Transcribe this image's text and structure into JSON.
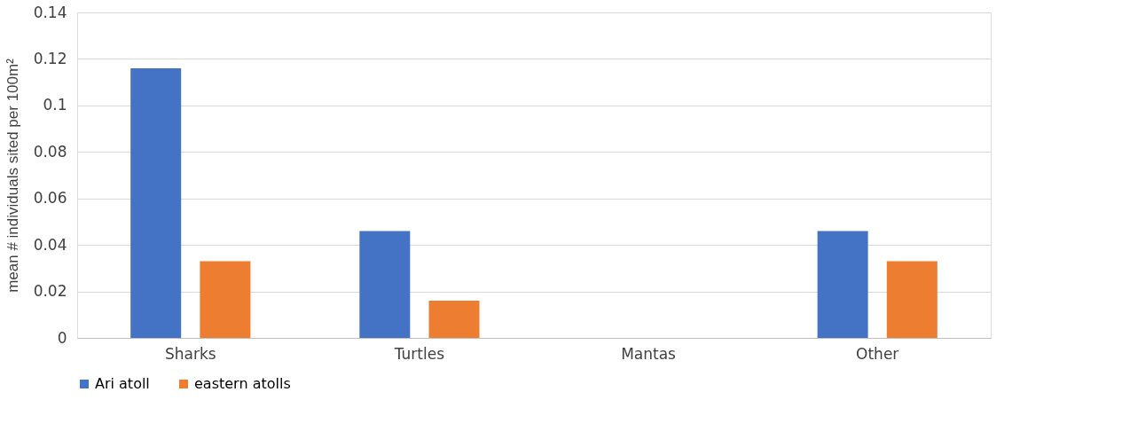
{
  "chart_data": {
    "type": "bar",
    "ylabel": "mean # individuals sited per 100m²",
    "categories": [
      "Sharks",
      "Turtles",
      "Mantas",
      "Other"
    ],
    "series": [
      {
        "name": "Ari atoll",
        "color": "#4472c4",
        "values": [
          0.116,
          0.046,
          0,
          0.046
        ]
      },
      {
        "name": "eastern atolls",
        "color": "#ed7d31",
        "values": [
          0.033,
          0.016,
          0,
          0.033
        ]
      }
    ],
    "ylim": [
      0,
      0.14
    ],
    "yticks": [
      0,
      0.02,
      0.04,
      0.06,
      0.08,
      0.1,
      0.12,
      0.14
    ],
    "grid": "y",
    "legend": "bottom"
  }
}
